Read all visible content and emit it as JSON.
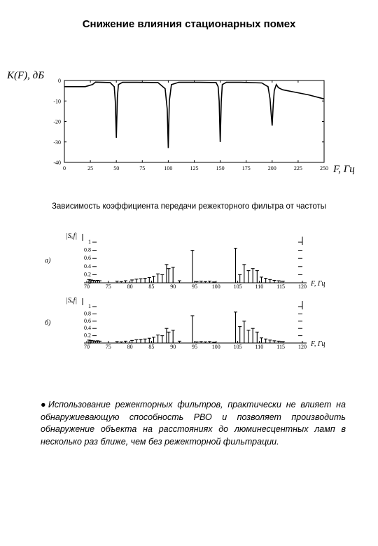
{
  "slide": {
    "title": "Снижение влияния стационарных помех",
    "caption": "Зависимость коэффициента передачи режекторного фильтра от частоты",
    "bullet": "Использование режекторных фильтров, практически не влияет на обнаружиевающую способность РВО и позволяет производить обнаружение объекта на расстояниях до люминесцентных ламп в несколько раз ближе, чем без режекторной фильтрации."
  },
  "chart_data": [
    {
      "type": "line",
      "ylabel": "K(F), дБ",
      "xlabel": "F, Гц",
      "x_ticks": [
        "0",
        "25",
        "50",
        "75",
        "100",
        "125",
        "150",
        "175",
        "200",
        "225",
        "250"
      ],
      "y_ticks": [
        "0",
        "-10",
        "-20",
        "-30",
        "-40"
      ],
      "xlim": [
        0,
        250
      ],
      "ylim": [
        -40,
        0
      ],
      "series": [
        {
          "x": [
            0,
            20,
            27,
            30,
            44,
            48,
            49,
            50,
            51,
            52,
            56,
            70,
            90,
            97,
            99,
            100,
            101,
            103,
            110,
            130,
            146,
            148,
            149,
            150,
            151,
            152,
            156,
            170,
            190,
            196,
            198,
            199,
            200,
            201,
            202,
            204,
            206,
            210,
            220,
            235,
            250
          ],
          "y": [
            -3,
            -3,
            -2,
            -0.8,
            -1,
            -3,
            -10,
            -28,
            -8,
            -2,
            -0.9,
            -0.9,
            -1,
            -4,
            -14,
            -33,
            -10,
            -2,
            -0.9,
            -0.9,
            -1,
            -3,
            -10,
            -30,
            -10,
            -2,
            -0.9,
            -0.9,
            -1.2,
            -3,
            -9,
            -16,
            -22,
            -12,
            -5,
            -2,
            -3.5,
            -4.5,
            -5.5,
            -7,
            -9
          ]
        }
      ]
    },
    {
      "type": "bar",
      "panel_label": "а)",
      "ylabel": "|Sₓf|",
      "xlabel": "F, Гц",
      "x_ticks": [
        "70",
        "75",
        "80",
        "85",
        "90",
        "95",
        "100",
        "105",
        "110",
        "115",
        "120"
      ],
      "y_ticks": [
        "1",
        "0.8",
        "0.6",
        "0.4",
        "0.2",
        "0"
      ],
      "xlim": [
        70,
        120
      ],
      "ylim": [
        0,
        1
      ],
      "stems": {
        "x": [
          70.5,
          71,
          71.5,
          72,
          72.5,
          73,
          77,
          78,
          79,
          80.5,
          81.5,
          82.5,
          83.5,
          84.5,
          85.5,
          86.5,
          87.5,
          88.5,
          89,
          90,
          91.5,
          94.5,
          95.5,
          96.5,
          97.5,
          98.5,
          99.5,
          104.5,
          105.5,
          106.5,
          107.5,
          108.5,
          109.5,
          110.5,
          111.5,
          112.5,
          113.5,
          114.5,
          115.5
        ],
        "y": [
          0.08,
          0.07,
          0.06,
          0.05,
          0.06,
          0.05,
          0.04,
          0.03,
          0.05,
          0.07,
          0.09,
          0.1,
          0.11,
          0.13,
          0.16,
          0.22,
          0.2,
          0.45,
          0.35,
          0.38,
          0.05,
          0.8,
          0.03,
          0.04,
          0.03,
          0.04,
          0.02,
          0.85,
          0.2,
          0.45,
          0.3,
          0.35,
          0.3,
          0.14,
          0.11,
          0.08,
          0.06,
          0.05,
          0.04
        ]
      }
    },
    {
      "type": "bar",
      "panel_label": "б)",
      "ylabel": "|Sₓf|",
      "xlabel": "F, Гц",
      "x_ticks": [
        "70",
        "75",
        "80",
        "85",
        "90",
        "95",
        "100",
        "105",
        "110",
        "115",
        "120"
      ],
      "y_ticks": [
        "1",
        "0.8",
        "0.6",
        "0.4",
        "0.2",
        "0"
      ],
      "xlim": [
        70,
        120
      ],
      "ylim": [
        0,
        1
      ],
      "stems": {
        "x": [
          70.5,
          71,
          71.5,
          72,
          72.5,
          73,
          77,
          78,
          79,
          80.5,
          81.5,
          82.5,
          83.5,
          84.5,
          85.5,
          86.5,
          87.5,
          88.5,
          89,
          90,
          91.5,
          94.5,
          95.5,
          96.5,
          97.5,
          98.5,
          99.5,
          104.5,
          105.5,
          106.5,
          107.5,
          108.5,
          109.5,
          110.5,
          111.5,
          112.5,
          113.5,
          114.5,
          115.5
        ],
        "y": [
          0.08,
          0.07,
          0.06,
          0.05,
          0.06,
          0.05,
          0.04,
          0.03,
          0.05,
          0.07,
          0.09,
          0.1,
          0.11,
          0.13,
          0.16,
          0.22,
          0.2,
          0.4,
          0.3,
          0.35,
          0.05,
          0.75,
          0.03,
          0.04,
          0.03,
          0.04,
          0.02,
          0.85,
          0.45,
          0.6,
          0.35,
          0.4,
          0.3,
          0.14,
          0.11,
          0.08,
          0.06,
          0.05,
          0.04
        ]
      }
    }
  ]
}
